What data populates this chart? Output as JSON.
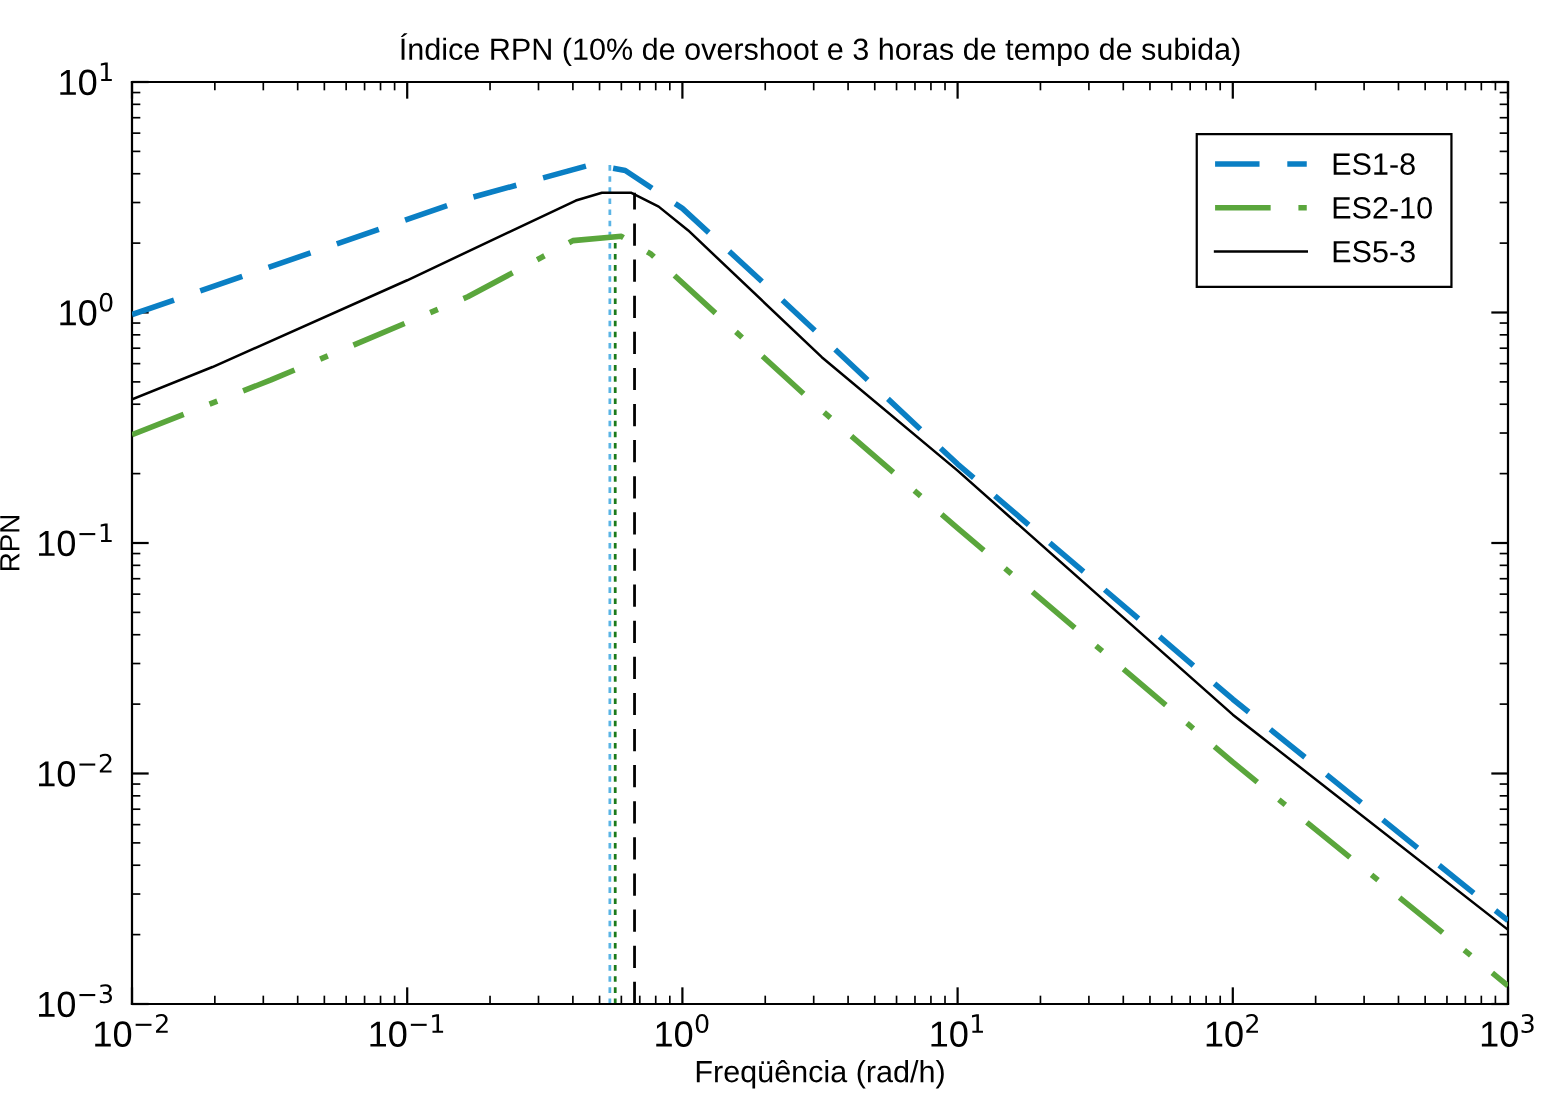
{
  "chart_data": {
    "type": "line",
    "title": "Índice RPN (10% de overshoot e 3 horas de tempo de subida)",
    "xlabel": "Freqüência (rad/h)",
    "ylabel": "RPN",
    "log": "xy",
    "grid": false,
    "legend": "top right",
    "marker": "none",
    "xlim": [
      0.01,
      1000
    ],
    "ylim": [
      0.001,
      10
    ],
    "xticks": [
      {
        "value": 0.01,
        "label": "10$^{−2}$"
      },
      {
        "value": 0.1,
        "label": "10$^{−1}$"
      },
      {
        "value": 1,
        "label": "10$^{0}$"
      },
      {
        "value": 10,
        "label": "10$^{1}$"
      },
      {
        "value": 100,
        "label": "10$^{2}$"
      },
      {
        "value": 1000,
        "label": "10$^{3}$"
      }
    ],
    "yticks": [
      {
        "value": 0.001,
        "label": "10$^{−3}$"
      },
      {
        "value": 0.01,
        "label": "10$^{−2}$"
      },
      {
        "value": 0.1,
        "label": "10$^{−1}$"
      },
      {
        "value": 1,
        "label": "10$^{0}$"
      },
      {
        "value": 10,
        "label": "10$^{1}$"
      }
    ],
    "series": [
      {
        "name": "ES1-8",
        "color": "#0a7fc4",
        "line_style": "dashed",
        "x": [
          0.01,
          0.166,
          0.469,
          0.62,
          1.0,
          2.31,
          10,
          100,
          1000
        ],
        "values": [
          0.98,
          3.12,
          4.39,
          4.13,
          2.83,
          1.13,
          0.22,
          0.021,
          0.0023
        ]
      },
      {
        "name": "ES2-10",
        "color": "#5aa63c",
        "line_style": "dashdot",
        "x": [
          0.01,
          0.032,
          0.166,
          0.4,
          0.6,
          0.77,
          3.21,
          10,
          100,
          1000
        ],
        "values": [
          0.295,
          0.51,
          1.17,
          2.05,
          2.14,
          1.79,
          0.376,
          0.116,
          0.0112,
          0.0012
        ]
      },
      {
        "name": "ES5-3",
        "color": "#000000",
        "line_style": "solid",
        "x": [
          0.01,
          0.0196,
          0.1,
          0.41,
          0.51,
          0.65,
          0.82,
          1.05,
          3.21,
          10,
          100,
          1000
        ],
        "values": [
          0.42,
          0.58,
          1.38,
          3.06,
          3.31,
          3.31,
          2.88,
          2.27,
          0.64,
          0.206,
          0.018,
          0.0021
        ]
      }
    ],
    "ref_lines": [
      {
        "axis": "x",
        "value": 0.545,
        "color": "#5bb4e5",
        "line_style": "dotted"
      },
      {
        "axis": "x",
        "value": 0.57,
        "color": "#1a7a1a",
        "line_style": "dotted"
      },
      {
        "axis": "x",
        "value": 0.67,
        "color": "#000000",
        "line_style": "dashed"
      }
    ]
  }
}
